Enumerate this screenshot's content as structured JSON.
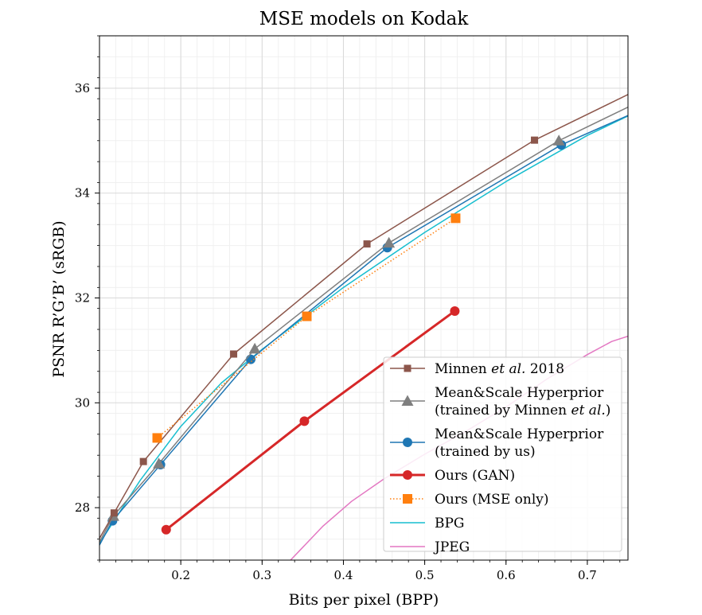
{
  "chart_data": {
    "type": "line",
    "title": "MSE models on Kodak",
    "xlabel": "Bits per pixel (BPP)",
    "ylabel": "PSNR R’G’B’ (sRGB)",
    "xlim": [
      0.1,
      0.75
    ],
    "ylim": [
      27.0,
      37.0
    ],
    "xticks": [
      0.2,
      0.3,
      0.4,
      0.5,
      0.6,
      0.7
    ],
    "xtick_labels": [
      "0.2",
      "0.3",
      "0.4",
      "0.5",
      "0.6",
      "0.7"
    ],
    "yticks": [
      28,
      30,
      32,
      34,
      36
    ],
    "ytick_labels": [
      "28",
      "30",
      "32",
      "34",
      "36"
    ],
    "grid": true,
    "legend_position": "lower-right",
    "series": [
      {
        "name": "Minnen et al. 2018",
        "legend_lines": [
          "Minnen |et al.| 2018"
        ],
        "color": "#8c564b",
        "marker": "square",
        "line_style": "solid",
        "x": [
          0.092,
          0.118,
          0.154,
          0.265,
          0.429,
          0.635,
          0.75
        ],
        "y": [
          27.2,
          27.9,
          28.88,
          30.93,
          33.03,
          35.01,
          35.88
        ]
      },
      {
        "name": "Mean&Scale Hyperprior (trained by Minnen et al.)",
        "legend_lines": [
          "Mean&Scale Hyperprior",
          "(trained by Minnen |et al.|)"
        ],
        "color": "#7f7f7f",
        "marker": "triangle",
        "line_style": "solid",
        "x": [
          0.095,
          0.117,
          0.173,
          0.291,
          0.456,
          0.665,
          0.75
        ],
        "y": [
          27.2,
          27.84,
          28.84,
          31.03,
          33.05,
          35.0,
          35.64
        ]
      },
      {
        "name": "Mean&Scale Hyperprior (trained by us)",
        "legend_lines": [
          "Mean&Scale Hyperprior",
          "(trained by us)"
        ],
        "color": "#1f77b4",
        "marker": "circle",
        "line_style": "solid",
        "x": [
          0.097,
          0.116,
          0.175,
          0.286,
          0.454,
          0.668,
          0.75
        ],
        "y": [
          27.2,
          27.75,
          28.82,
          30.83,
          32.96,
          34.92,
          35.48
        ]
      },
      {
        "name": "Ours (GAN)",
        "legend_lines": [
          "Ours (GAN)"
        ],
        "color": "#d62728",
        "marker": "circle",
        "line_style": "solid",
        "x": [
          0.182,
          0.352,
          0.537
        ],
        "y": [
          27.58,
          29.65,
          31.75
        ]
      },
      {
        "name": "Ours (MSE only)",
        "legend_lines": [
          "Ours (MSE only)"
        ],
        "color": "#ff7f0e",
        "marker": "square",
        "line_style": "dotted",
        "x": [
          0.171,
          0.355,
          0.538
        ],
        "y": [
          29.33,
          31.65,
          33.52
        ]
      },
      {
        "name": "BPG",
        "legend_lines": [
          "BPG"
        ],
        "color": "#17becf",
        "marker": "none",
        "line_style": "solid",
        "x": [
          0.1,
          0.15,
          0.2,
          0.25,
          0.3,
          0.4,
          0.5,
          0.6,
          0.7,
          0.75
        ],
        "y": [
          27.32,
          28.52,
          29.55,
          30.38,
          31.02,
          32.2,
          33.25,
          34.22,
          35.1,
          35.47
        ]
      },
      {
        "name": "JPEG",
        "legend_lines": [
          "JPEG"
        ],
        "color": "#e377c2",
        "marker": "none",
        "line_style": "solid",
        "x": [
          0.335,
          0.375,
          0.41,
          0.45,
          0.5,
          0.55,
          0.6,
          0.65,
          0.7,
          0.73,
          0.75
        ],
        "y": [
          27.0,
          27.65,
          28.12,
          28.55,
          29.02,
          29.45,
          29.92,
          30.45,
          30.92,
          31.17,
          31.27
        ]
      }
    ]
  }
}
